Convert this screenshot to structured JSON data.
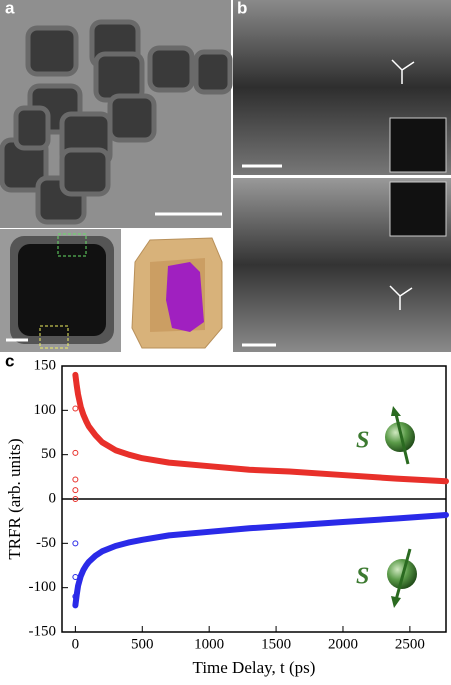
{
  "panel_labels": [
    "a",
    "b",
    "c"
  ],
  "chart_data": {
    "type": "line",
    "ylabel": "TRFR (arb. units)",
    "xlabel": "Time Delay, t (ps)",
    "xlim": [
      -100,
      2770
    ],
    "ylim": [
      -150,
      150
    ],
    "xticks": [
      0,
      500,
      1000,
      1500,
      2000,
      2500
    ],
    "yticks": [
      -150,
      -100,
      -50,
      0,
      50,
      100,
      150
    ],
    "zero_line": true,
    "series": [
      {
        "color": "#e8302a",
        "x": [
          0,
          10,
          20,
          40,
          60,
          80,
          100,
          150,
          200,
          300,
          400,
          500,
          700,
          1000,
          1300,
          1600,
          2000,
          2400,
          2770
        ],
        "values": [
          140,
          128,
          118,
          104,
          95,
          88,
          82,
          72,
          64,
          55,
          50,
          46,
          41,
          37,
          33,
          31,
          27,
          23,
          20
        ]
      },
      {
        "color": "#2a2ae8",
        "x": [
          0,
          10,
          20,
          40,
          60,
          80,
          100,
          150,
          200,
          300,
          400,
          500,
          700,
          1000,
          1300,
          1600,
          2000,
          2400,
          2770
        ],
        "values": [
          -120,
          -108,
          -98,
          -87,
          -80,
          -75,
          -71,
          -64,
          -59,
          -53,
          -49,
          -46,
          -41,
          -37,
          -33,
          -30,
          -26,
          -22,
          -18
        ]
      }
    ],
    "rise_points": [
      {
        "color": "#e8302a",
        "x": [
          0,
          0,
          0,
          0,
          0
        ],
        "values": [
          0,
          10,
          22,
          52,
          102
        ]
      },
      {
        "color": "#2a2ae8",
        "x": [
          0,
          0,
          0
        ],
        "values": [
          -50,
          -88,
          -110
        ]
      }
    ],
    "annotations": [
      "S",
      "S"
    ]
  }
}
